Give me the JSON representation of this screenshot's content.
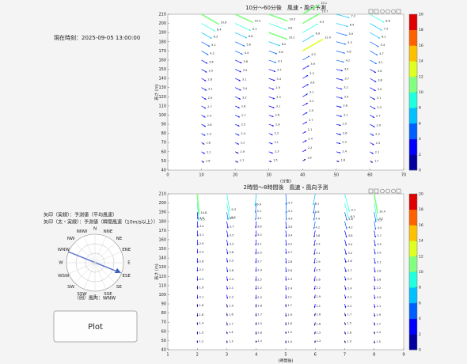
{
  "panel": {
    "time": "現在時刻：2025-09-05 13:00:00",
    "legend_lines": [
      "矢印（実線）：予測値（平均風速）",
      "矢印（太・実線）：予測値（瞬間風速（10m/s以上））"
    ],
    "compass": [
      "N",
      "NNE",
      "NE",
      "ENE",
      "E",
      "ESE",
      "SE",
      "SSE",
      "S",
      "SSW",
      "SW",
      "WSW",
      "W",
      "WNW",
      "NW",
      "NNW"
    ],
    "example": "（例）風向：WNW",
    "button": "Plot"
  },
  "chart_data": [
    {
      "type": "wind-arrows",
      "title": "10分〜60分後　風速・風向予測",
      "xlabel": "(分後)",
      "ylabel": "高さ (m)",
      "xlim": [
        0,
        70
      ],
      "xticks": [
        0,
        10,
        20,
        30,
        40,
        50,
        60,
        70
      ],
      "ylim": [
        40,
        210
      ],
      "yticks": [
        40,
        50,
        60,
        70,
        80,
        90,
        100,
        110,
        120,
        130,
        140,
        150,
        160,
        170,
        180,
        190,
        200,
        210
      ],
      "clim": [
        0,
        20
      ],
      "cticks": [
        0,
        2,
        4,
        6,
        8,
        10,
        12,
        14,
        16,
        18,
        20
      ],
      "colormap": [
        "#00009f",
        "#0000ff",
        "#0060ff",
        "#00c0ff",
        "#20ffdf",
        "#80ff80",
        "#dfff20",
        "#ffc000",
        "#ff6000",
        "#df0000"
      ],
      "heights": [
        50,
        60,
        70,
        80,
        90,
        100,
        110,
        120,
        130,
        140,
        150,
        160,
        170,
        180,
        190,
        200,
        210
      ],
      "columns": [
        {
          "x": 10,
          "direction": 300,
          "values": [
            1.6,
            2.1,
            1.8,
            2.3,
            2.6,
            2.4,
            2.7,
            2.9,
            3.1,
            2.8,
            3.3,
            3.6,
            4.2,
            5.1,
            6.3,
            8.4,
            10.6
          ]
        },
        {
          "x": 20,
          "direction": 295,
          "values": [
            1.7,
            1.9,
            2.2,
            2.4,
            2.5,
            2.7,
            2.6,
            3.2,
            3.4,
            3.1,
            3.5,
            3.8,
            4.4,
            5.6,
            6.8,
            9.1,
            10.3
          ]
        },
        {
          "x": 30,
          "direction": 290,
          "values": [
            1.5,
            2.3,
            2.1,
            2.2,
            2.8,
            2.6,
            3.1,
            3.3,
            2.9,
            3.4,
            3.7,
            4.1,
            4.6,
            6.2,
            10.2,
            9.8,
            10.5
          ]
        },
        {
          "x": 40,
          "direction": 240,
          "values": [
            1.8,
            2.2,
            2.4,
            2.1,
            2.7,
            2.9,
            3.2,
            3.1,
            3.6,
            3.3,
            3.9,
            4.3,
            12.4,
            6.9,
            9.3,
            10.7,
            10.1
          ]
        },
        {
          "x": 50,
          "direction": 285,
          "values": [
            1.6,
            2.4,
            2.3,
            2.6,
            2.5,
            3.1,
            2.8,
            3.4,
            3.2,
            3.7,
            3.5,
            4.2,
            4.8,
            5.3,
            5.9,
            6.4,
            7.2
          ]
        },
        {
          "x": 60,
          "direction": 300,
          "values": [
            1.7,
            2.1,
            2.5,
            2.3,
            2.9,
            2.7,
            3.3,
            3.1,
            3.5,
            3.8,
            3.6,
            4.1,
            4.7,
            5.4,
            6.1,
            7.3,
            8.6
          ]
        }
      ]
    },
    {
      "type": "wind-arrows",
      "title": "2時間〜8時間後　風速・風向予測",
      "xlabel": "(時間後)",
      "ylabel": "高さ (m)",
      "xlim": [
        1,
        9
      ],
      "xticks": [
        1,
        2,
        3,
        4,
        5,
        6,
        7,
        8,
        9
      ],
      "ylim": [
        40,
        210
      ],
      "yticks": [
        40,
        50,
        60,
        70,
        80,
        90,
        100,
        110,
        120,
        130,
        140,
        150,
        160,
        170,
        180,
        190,
        200,
        210
      ],
      "clim": [
        0,
        20
      ],
      "cticks": [
        0,
        2,
        4,
        6,
        8,
        10,
        12,
        14,
        16,
        18,
        20
      ],
      "colormap": [
        "#00009f",
        "#0000ff",
        "#0060ff",
        "#00c0ff",
        "#20ffdf",
        "#80ff80",
        "#dfff20",
        "#ffc000",
        "#ff6000",
        "#df0000"
      ],
      "heights": [
        50,
        60,
        70,
        80,
        90,
        100,
        110,
        120,
        130,
        140,
        150,
        160,
        170,
        180,
        190,
        200,
        210
      ],
      "columns": [
        {
          "x": 2,
          "direction": 355,
          "values": [
            1.2,
            1.5,
            1.4,
            1.8,
            1.6,
            2.1,
            1.9,
            2.3,
            2.2,
            2.6,
            2.4,
            2.9,
            3.1,
            3.4,
            3.8,
            9.5,
            10.8
          ]
        },
        {
          "x": 3,
          "direction": 350,
          "values": [
            1.3,
            1.4,
            1.7,
            1.6,
            1.9,
            2.2,
            2.1,
            2.4,
            2.6,
            2.3,
            2.8,
            3.2,
            3.5,
            3.7,
            4.1,
            8.6,
            9.3
          ]
        },
        {
          "x": 4,
          "direction": 5,
          "values": [
            1.1,
            1.6,
            1.5,
            1.7,
            1.8,
            2.3,
            2.2,
            2.5,
            2.4,
            2.7,
            2.9,
            3.1,
            3.3,
            3.6,
            4.2,
            5.1,
            6.4
          ]
        },
        {
          "x": 5,
          "direction": 355,
          "values": [
            1.4,
            1.3,
            1.6,
            1.9,
            1.7,
            2.1,
            2.4,
            2.3,
            2.6,
            2.8,
            2.7,
            3.2,
            3.4,
            3.9,
            4.3,
            5.2,
            5.7
          ]
        },
        {
          "x": 6,
          "direction": 10,
          "values": [
            1.2,
            1.5,
            1.8,
            1.6,
            2.1,
            1.9,
            2.2,
            2.6,
            2.5,
            2.9,
            3.1,
            3.3,
            3.6,
            4.1,
            4.4,
            5.6,
            6.1
          ]
        },
        {
          "x": 7,
          "direction": 345,
          "values": [
            1.3,
            1.6,
            1.5,
            1.7,
            2.2,
            2.1,
            2.4,
            2.3,
            2.7,
            2.6,
            3.2,
            3.4,
            3.8,
            4.2,
            4.6,
            8.3,
            9.7
          ]
        },
        {
          "x": 8,
          "direction": 350,
          "values": [
            1.5,
            1.4,
            1.7,
            1.9,
            2.1,
            2.3,
            2.2,
            2.6,
            2.8,
            3.1,
            2.9,
            3.5,
            3.7,
            4.4,
            5.3,
            9.2,
            10.4
          ]
        }
      ]
    }
  ]
}
